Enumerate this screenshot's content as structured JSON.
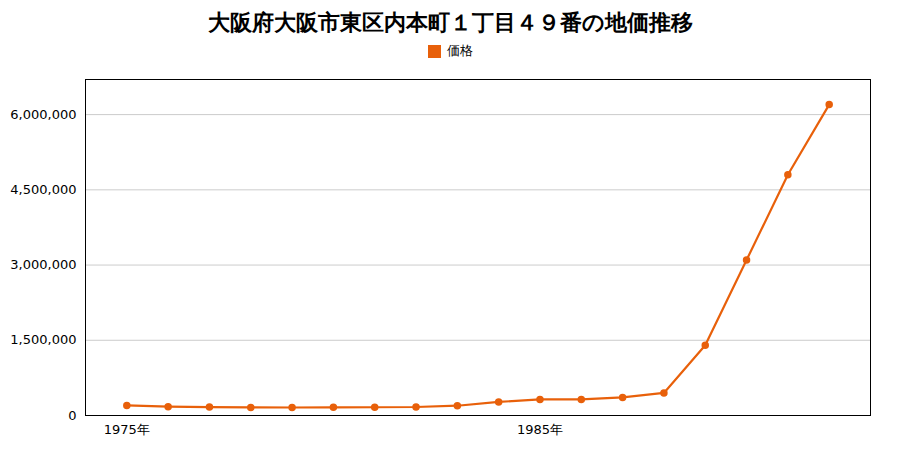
{
  "chart_data": {
    "type": "line",
    "title": "大阪府大阪市東区内本町１丁目４９番の地価推移",
    "x": [
      1975,
      1976,
      1977,
      1978,
      1979,
      1980,
      1981,
      1982,
      1983,
      1984,
      1985,
      1986,
      1987,
      1988,
      1989,
      1990,
      1991,
      1992
    ],
    "series": [
      {
        "name": "価格",
        "color": "#e8600a",
        "marker": "circle",
        "values": [
          200000,
          175000,
          168000,
          162000,
          160000,
          163000,
          165000,
          170000,
          195000,
          270000,
          320000,
          320000,
          360000,
          450000,
          1400000,
          3100000,
          4800000,
          6200000
        ]
      }
    ],
    "xlim": [
      1974.0,
      1993.0
    ],
    "xticks": [
      {
        "value": 1975,
        "label": "1975年"
      },
      {
        "value": 1985,
        "label": "1985年"
      }
    ],
    "ylim": [
      0,
      6700000
    ],
    "yticks": [
      0,
      {
        "value": 1500000,
        "label": "1,500,000"
      },
      {
        "value": 3000000,
        "label": "3,000,000"
      },
      {
        "value": 4500000,
        "label": "4,500,000"
      },
      {
        "value": 6000000,
        "label": "6,000,000"
      }
    ],
    "grid": true,
    "legend": "top"
  }
}
